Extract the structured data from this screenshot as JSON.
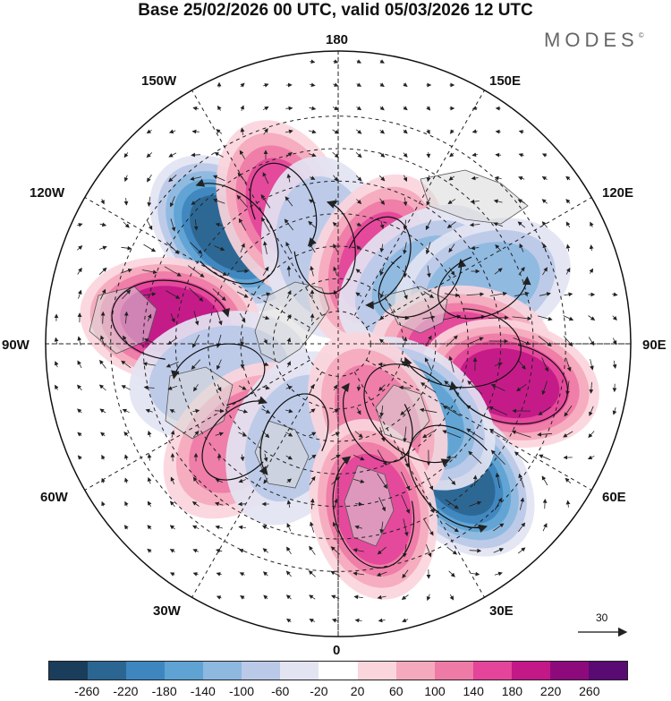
{
  "title": "Base 25/02/2026 00 UTC, valid 05/03/2026 12 UTC",
  "logo": "MODES",
  "logo_mark": "©",
  "longitude_labels": {
    "lon_180": "180",
    "lon_150e": "150E",
    "lon_120e": "120E",
    "lon_90e": "90E",
    "lon_60e": "60E",
    "lon_30e": "30E",
    "lon_0": "0",
    "lon_30w": "30W",
    "lon_60w": "60W",
    "lon_90w": "90W",
    "lon_120w": "120W",
    "lon_150w": "150W"
  },
  "reference_vector": "30",
  "colorbar": {
    "colors": [
      "#1a3d5c",
      "#2b6591",
      "#3e86bf",
      "#5ea3d3",
      "#8db8e0",
      "#bac9e8",
      "#e3e4f2",
      "#ffffff",
      "#fbd5dc",
      "#f5a9bd",
      "#ee7aa6",
      "#e4449a",
      "#c21888",
      "#8d0a7c",
      "#5a0a73"
    ],
    "tick_labels": [
      "-260",
      "-220",
      "-180",
      "-140",
      "-100",
      "-60",
      "-20",
      "20",
      "60",
      "100",
      "140",
      "180",
      "220",
      "260"
    ]
  },
  "anomaly_centers": [
    {
      "lon": -135,
      "lat": 42,
      "value": -220
    },
    {
      "lon": -158,
      "lat": 45,
      "value": 150
    },
    {
      "lon": -172,
      "lat": 60,
      "value": -90
    },
    {
      "lon": 155,
      "lat": 62,
      "value": 150
    },
    {
      "lon": 128,
      "lat": 58,
      "value": -100
    },
    {
      "lon": 112,
      "lat": 42,
      "value": -120
    },
    {
      "lon": -98,
      "lat": 38,
      "value": 200
    },
    {
      "lon": -75,
      "lat": 52,
      "value": -90
    },
    {
      "lon": -45,
      "lat": 48,
      "value": 130
    },
    {
      "lon": -25,
      "lat": 58,
      "value": -70
    },
    {
      "lon": 88,
      "lat": 52,
      "value": 160
    },
    {
      "lon": 77,
      "lat": 36,
      "value": 200
    },
    {
      "lon": 42,
      "lat": 35,
      "value": -220
    },
    {
      "lon": 48,
      "lat": 58,
      "value": -170
    },
    {
      "lon": 28,
      "lat": 64,
      "value": 110
    },
    {
      "lon": 12,
      "lat": 38,
      "value": 170
    }
  ]
}
